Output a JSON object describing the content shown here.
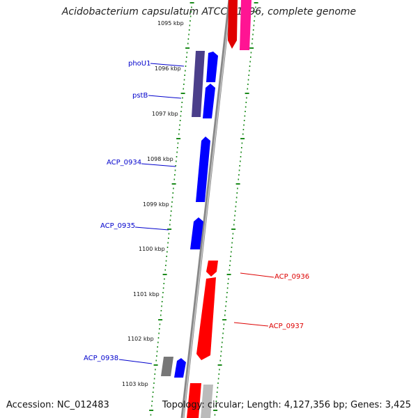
{
  "title": "Acidobacterium capsulatum ATCC 51196, complete genome",
  "footer": {
    "accession": "Accession: NC_012483",
    "topology": "Topology: circular; Length: 4,127,356 bp; Genes: 3,425"
  },
  "colors": {
    "forward_gene": "#0000ff",
    "reverse_gene": "#ff0000",
    "rna": "#ff1493",
    "backbone": "#888888",
    "ticks": "#1a8a1a",
    "dark_gene": "#4b3f8a",
    "gray_gene": "#777777"
  },
  "kbp_markers": [
    "1095 kbp",
    "1096 kbp",
    "1097 kbp",
    "1098 kbp",
    "1099 kbp",
    "1100 kbp",
    "1101 kbp",
    "1102 kbp",
    "1103 kbp"
  ],
  "gene_labels": [
    {
      "text": "phoU1",
      "strand": "forward"
    },
    {
      "text": "pstB",
      "strand": "forward"
    },
    {
      "text": "ACP_0934",
      "strand": "forward"
    },
    {
      "text": "ACP_0935",
      "strand": "forward"
    },
    {
      "text": "ACP_0936",
      "strand": "reverse"
    },
    {
      "text": "ACP_0937",
      "strand": "reverse"
    },
    {
      "text": "ACP_0938",
      "strand": "forward"
    }
  ]
}
